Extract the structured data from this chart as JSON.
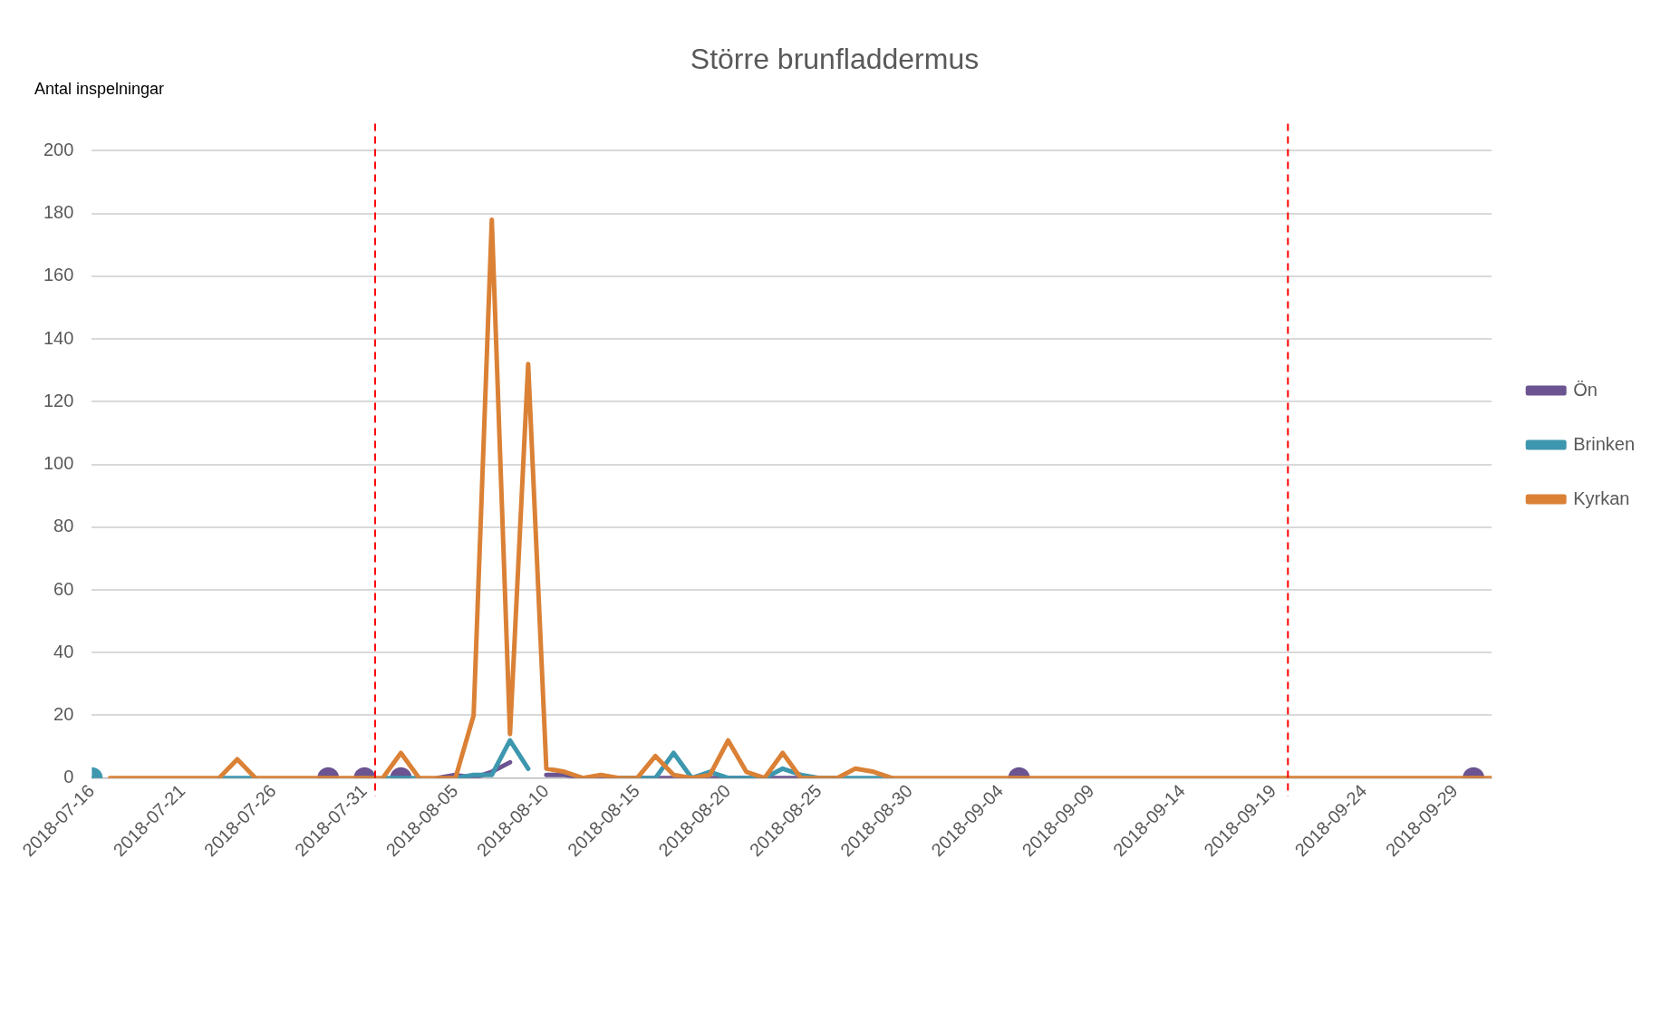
{
  "chart_data": {
    "type": "line",
    "title": "Större brunfladdermus",
    "ylabel": "Antal inspelningar",
    "x": [
      "2018-07-16",
      "2018-07-17",
      "2018-07-18",
      "2018-07-19",
      "2018-07-20",
      "2018-07-21",
      "2018-07-22",
      "2018-07-23",
      "2018-07-24",
      "2018-07-25",
      "2018-07-26",
      "2018-07-27",
      "2018-07-28",
      "2018-07-29",
      "2018-07-30",
      "2018-07-31",
      "2018-08-01",
      "2018-08-02",
      "2018-08-03",
      "2018-08-04",
      "2018-08-05",
      "2018-08-06",
      "2018-08-07",
      "2018-08-08",
      "2018-08-09",
      "2018-08-10",
      "2018-08-11",
      "2018-08-12",
      "2018-08-13",
      "2018-08-14",
      "2018-08-15",
      "2018-08-16",
      "2018-08-17",
      "2018-08-18",
      "2018-08-19",
      "2018-08-20",
      "2018-08-21",
      "2018-08-22",
      "2018-08-23",
      "2018-08-24",
      "2018-08-25",
      "2018-08-26",
      "2018-08-27",
      "2018-08-28",
      "2018-08-29",
      "2018-08-30",
      "2018-08-31",
      "2018-09-01",
      "2018-09-02",
      "2018-09-03",
      "2018-09-04",
      "2018-09-05",
      "2018-09-06",
      "2018-09-07",
      "2018-09-08",
      "2018-09-09",
      "2018-09-10",
      "2018-09-11",
      "2018-09-12",
      "2018-09-13",
      "2018-09-14",
      "2018-09-15",
      "2018-09-16",
      "2018-09-17",
      "2018-09-18",
      "2018-09-19",
      "2018-09-20",
      "2018-09-21",
      "2018-09-22",
      "2018-09-23",
      "2018-09-24",
      "2018-09-25",
      "2018-09-26",
      "2018-09-27",
      "2018-09-28",
      "2018-09-29",
      "2018-09-30",
      "2018-10-01"
    ],
    "series": [
      {
        "name": "Ön",
        "color": "#6b5491",
        "values": [
          null,
          null,
          null,
          null,
          null,
          null,
          null,
          null,
          null,
          null,
          null,
          null,
          null,
          0,
          null,
          0,
          null,
          0,
          null,
          0,
          1,
          0,
          2,
          5,
          null,
          1,
          1,
          0,
          0,
          0,
          0,
          0,
          0,
          0,
          0,
          0,
          0,
          0,
          0,
          0,
          0,
          0,
          null,
          null,
          null,
          null,
          null,
          null,
          null,
          null,
          null,
          0,
          null,
          null,
          null,
          null,
          null,
          null,
          null,
          null,
          null,
          null,
          null,
          null,
          null,
          null,
          null,
          null,
          null,
          null,
          null,
          null,
          null,
          null,
          null,
          null,
          0,
          null
        ]
      },
      {
        "name": "Brinken",
        "color": "#3d97ae",
        "values": [
          0,
          null,
          null,
          null,
          null,
          null,
          null,
          0,
          0,
          0,
          null,
          null,
          null,
          null,
          null,
          null,
          0,
          0,
          0,
          null,
          0,
          1,
          1,
          12,
          3,
          null,
          null,
          null,
          null,
          0,
          0,
          0,
          8,
          0,
          2,
          0,
          0,
          0,
          3,
          1,
          0,
          0,
          0,
          0,
          0,
          null,
          null,
          null,
          null,
          null,
          null,
          null,
          null,
          null,
          null,
          null,
          null,
          null,
          null,
          null,
          null,
          null,
          null,
          null,
          null,
          null,
          null,
          null,
          null,
          null,
          null,
          null,
          null,
          null,
          null,
          null,
          null,
          null
        ]
      },
      {
        "name": "Kyrkan",
        "color": "#da8136",
        "values": [
          null,
          0,
          0,
          0,
          0,
          0,
          0,
          0,
          6,
          0,
          0,
          0,
          0,
          0,
          0,
          0,
          0,
          8,
          0,
          0,
          0,
          20,
          178,
          14,
          132,
          3,
          2,
          0,
          1,
          0,
          0,
          7,
          1,
          0,
          1,
          12,
          2,
          0,
          8,
          0,
          0,
          0,
          3,
          2,
          0,
          0,
          0,
          0,
          0,
          0,
          0,
          0,
          0,
          0,
          0,
          0,
          0,
          0,
          0,
          0,
          0,
          0,
          0,
          0,
          0,
          0,
          0,
          0,
          0,
          0,
          0,
          0,
          0,
          0,
          0,
          0,
          0,
          0
        ]
      }
    ],
    "xlim": [
      "2018-07-16",
      "2018-10-01"
    ],
    "xticks": [
      "2018-07-16",
      "2018-07-21",
      "2018-07-26",
      "2018-07-31",
      "2018-08-05",
      "2018-08-10",
      "2018-08-15",
      "2018-08-20",
      "2018-08-25",
      "2018-08-30",
      "2018-09-04",
      "2018-09-09",
      "2018-09-14",
      "2018-09-19",
      "2018-09-24",
      "2018-09-29"
    ],
    "ylim": [
      0,
      200
    ],
    "yticks": [
      0,
      20,
      40,
      60,
      80,
      100,
      120,
      140,
      160,
      180,
      200
    ],
    "ref_lines": [
      {
        "axis": "x",
        "value": "2018-07-31T14:00",
        "color": "#ff0000",
        "line_style": "dashed"
      },
      {
        "axis": "x",
        "value": "2018-09-19T19:00",
        "color": "#ff0000",
        "line_style": "dashed"
      }
    ],
    "grid": "y",
    "legend": "right",
    "marker": "none",
    "line_style": "solid"
  }
}
